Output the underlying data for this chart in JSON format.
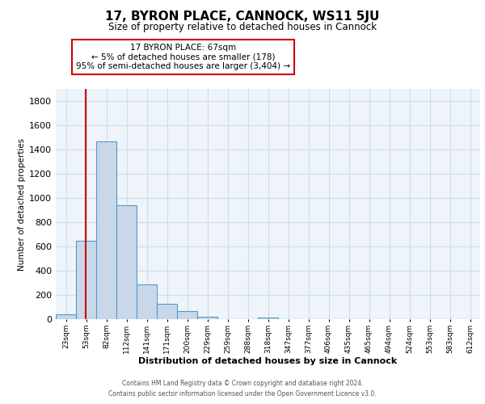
{
  "title": "17, BYRON PLACE, CANNOCK, WS11 5JU",
  "subtitle": "Size of property relative to detached houses in Cannock",
  "xlabel": "Distribution of detached houses by size in Cannock",
  "ylabel": "Number of detached properties",
  "bin_labels": [
    "23sqm",
    "53sqm",
    "82sqm",
    "112sqm",
    "141sqm",
    "171sqm",
    "200sqm",
    "229sqm",
    "259sqm",
    "288sqm",
    "318sqm",
    "347sqm",
    "377sqm",
    "406sqm",
    "435sqm",
    "465sqm",
    "494sqm",
    "524sqm",
    "553sqm",
    "583sqm",
    "612sqm"
  ],
  "bin_values": [
    40,
    650,
    1470,
    940,
    290,
    130,
    65,
    22,
    0,
    0,
    15,
    0,
    0,
    0,
    0,
    0,
    0,
    0,
    0,
    0,
    0
  ],
  "bar_color": "#c8d8e8",
  "bar_edge_color": "#5599cc",
  "property_line_color": "#cc0000",
  "annotation_text": "17 BYRON PLACE: 67sqm\n← 5% of detached houses are smaller (178)\n95% of semi-detached houses are larger (3,404) →",
  "annotation_box_color": "#ffffff",
  "annotation_box_edge": "#cc0000",
  "ylim": [
    0,
    1900
  ],
  "yticks": [
    0,
    200,
    400,
    600,
    800,
    1000,
    1200,
    1400,
    1600,
    1800
  ],
  "grid_color": "#ccddee",
  "bg_color": "#eef4fa",
  "footer_line1": "Contains HM Land Registry data © Crown copyright and database right 2024.",
  "footer_line2": "Contains public sector information licensed under the Open Government Licence v3.0."
}
